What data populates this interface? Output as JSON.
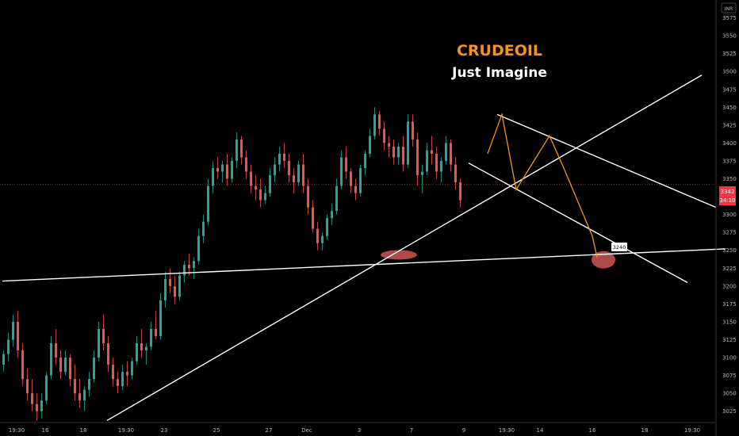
{
  "chart_data": {
    "type": "candlestick",
    "title": "CRUDEOIL",
    "subtitle": "Just Imagine",
    "currency": "INR",
    "ylim": [
      3012.5,
      3600
    ],
    "y_ticks": [
      3575,
      3550,
      3525,
      3500,
      3475,
      3450,
      3425,
      3400,
      3375,
      3350,
      3325,
      3300,
      3275,
      3250,
      3225,
      3200,
      3175,
      3150,
      3125,
      3100,
      3075,
      3050,
      3025
    ],
    "x_ticks": [
      {
        "label": "19:30",
        "slot": 3
      },
      {
        "label": "16",
        "slot": 9
      },
      {
        "label": "18",
        "slot": 17
      },
      {
        "label": "19:30",
        "slot": 26
      },
      {
        "label": "23",
        "slot": 34
      },
      {
        "label": "25",
        "slot": 45
      },
      {
        "label": "27",
        "slot": 56
      },
      {
        "label": "Dec",
        "slot": 64
      },
      {
        "label": "3",
        "slot": 75
      },
      {
        "label": "7",
        "slot": 86
      },
      {
        "label": "9",
        "slot": 97
      },
      {
        "label": "19:30",
        "slot": 106
      },
      {
        "label": "14",
        "slot": 113
      },
      {
        "label": "16",
        "slot": 124
      },
      {
        "label": "18",
        "slot": 135
      },
      {
        "label": "19:30",
        "slot": 145
      }
    ],
    "last_price": {
      "value": 3342,
      "countdown": "34:10",
      "color": "#f23645"
    },
    "annotation": {
      "label": "3240",
      "value": 3240
    },
    "colors": {
      "up": "#26a69a",
      "down": "#ef5350",
      "trendline": "#ffffff",
      "pattern": "#f7931a",
      "title": "#f7931a",
      "subtitle": "#ffffff",
      "highlight": "#e05c5c"
    },
    "candles": [
      [
        3090,
        3110,
        3080,
        3105
      ],
      [
        3105,
        3135,
        3095,
        3125
      ],
      [
        3125,
        3160,
        3115,
        3150
      ],
      [
        3150,
        3165,
        3100,
        3110
      ],
      [
        3110,
        3120,
        3060,
        3070
      ],
      [
        3070,
        3085,
        3040,
        3050
      ],
      [
        3050,
        3070,
        3025,
        3035
      ],
      [
        3035,
        3050,
        3012,
        3025
      ],
      [
        3025,
        3050,
        3015,
        3040
      ],
      [
        3040,
        3080,
        3035,
        3075
      ],
      [
        3075,
        3130,
        3070,
        3120
      ],
      [
        3120,
        3140,
        3090,
        3100
      ],
      [
        3100,
        3110,
        3070,
        3080
      ],
      [
        3080,
        3110,
        3075,
        3100
      ],
      [
        3100,
        3105,
        3060,
        3070
      ],
      [
        3070,
        3090,
        3040,
        3050
      ],
      [
        3050,
        3070,
        3030,
        3040
      ],
      [
        3040,
        3060,
        3025,
        3055
      ],
      [
        3055,
        3080,
        3045,
        3070
      ],
      [
        3070,
        3110,
        3065,
        3100
      ],
      [
        3100,
        3150,
        3095,
        3140
      ],
      [
        3140,
        3160,
        3110,
        3120
      ],
      [
        3120,
        3130,
        3080,
        3090
      ],
      [
        3090,
        3100,
        3060,
        3070
      ],
      [
        3070,
        3080,
        3050,
        3060
      ],
      [
        3060,
        3090,
        3055,
        3080
      ],
      [
        3080,
        3095,
        3060,
        3075
      ],
      [
        3075,
        3100,
        3070,
        3095
      ],
      [
        3095,
        3130,
        3090,
        3120
      ],
      [
        3120,
        3140,
        3100,
        3110
      ],
      [
        3110,
        3120,
        3090,
        3115
      ],
      [
        3115,
        3150,
        3110,
        3140
      ],
      [
        3140,
        3165,
        3125,
        3130
      ],
      [
        3130,
        3190,
        3125,
        3180
      ],
      [
        3180,
        3220,
        3170,
        3210
      ],
      [
        3210,
        3225,
        3190,
        3200
      ],
      [
        3200,
        3215,
        3175,
        3185
      ],
      [
        3185,
        3220,
        3180,
        3215
      ],
      [
        3215,
        3235,
        3205,
        3230
      ],
      [
        3230,
        3245,
        3215,
        3225
      ],
      [
        3225,
        3240,
        3210,
        3235
      ],
      [
        3235,
        3280,
        3230,
        3270
      ],
      [
        3270,
        3300,
        3260,
        3290
      ],
      [
        3290,
        3350,
        3285,
        3340
      ],
      [
        3340,
        3375,
        3330,
        3365
      ],
      [
        3365,
        3380,
        3350,
        3360
      ],
      [
        3360,
        3375,
        3345,
        3370
      ],
      [
        3370,
        3385,
        3340,
        3350
      ],
      [
        3350,
        3380,
        3345,
        3375
      ],
      [
        3375,
        3415,
        3365,
        3405
      ],
      [
        3405,
        3410,
        3370,
        3380
      ],
      [
        3380,
        3390,
        3350,
        3360
      ],
      [
        3360,
        3370,
        3330,
        3340
      ],
      [
        3340,
        3355,
        3320,
        3335
      ],
      [
        3335,
        3350,
        3310,
        3320
      ],
      [
        3320,
        3340,
        3315,
        3330
      ],
      [
        3330,
        3365,
        3325,
        3355
      ],
      [
        3355,
        3380,
        3345,
        3370
      ],
      [
        3370,
        3395,
        3360,
        3385
      ],
      [
        3385,
        3400,
        3365,
        3375
      ],
      [
        3375,
        3385,
        3345,
        3355
      ],
      [
        3355,
        3365,
        3330,
        3345
      ],
      [
        3345,
        3375,
        3340,
        3370
      ],
      [
        3370,
        3385,
        3330,
        3340
      ],
      [
        3340,
        3350,
        3300,
        3310
      ],
      [
        3310,
        3320,
        3275,
        3280
      ],
      [
        3280,
        3290,
        3250,
        3260
      ],
      [
        3260,
        3275,
        3250,
        3270
      ],
      [
        3270,
        3300,
        3265,
        3295
      ],
      [
        3295,
        3315,
        3285,
        3305
      ],
      [
        3305,
        3350,
        3300,
        3340
      ],
      [
        3340,
        3390,
        3335,
        3380
      ],
      [
        3380,
        3395,
        3350,
        3360
      ],
      [
        3360,
        3365,
        3330,
        3340
      ],
      [
        3340,
        3350,
        3320,
        3330
      ],
      [
        3330,
        3370,
        3325,
        3365
      ],
      [
        3365,
        3390,
        3355,
        3385
      ],
      [
        3385,
        3420,
        3380,
        3410
      ],
      [
        3410,
        3450,
        3405,
        3440
      ],
      [
        3440,
        3445,
        3410,
        3420
      ],
      [
        3420,
        3430,
        3390,
        3400
      ],
      [
        3400,
        3410,
        3380,
        3395
      ],
      [
        3395,
        3405,
        3370,
        3380
      ],
      [
        3380,
        3400,
        3370,
        3395
      ],
      [
        3395,
        3410,
        3360,
        3370
      ],
      [
        3370,
        3440,
        3365,
        3430
      ],
      [
        3430,
        3440,
        3395,
        3405
      ],
      [
        3405,
        3415,
        3340,
        3355
      ],
      [
        3355,
        3370,
        3330,
        3360
      ],
      [
        3360,
        3400,
        3355,
        3390
      ],
      [
        3390,
        3410,
        3370,
        3385
      ],
      [
        3385,
        3395,
        3350,
        3360
      ],
      [
        3360,
        3380,
        3345,
        3375
      ],
      [
        3375,
        3410,
        3370,
        3400
      ],
      [
        3400,
        3405,
        3360,
        3370
      ],
      [
        3370,
        3380,
        3335,
        3345
      ],
      [
        3345,
        3350,
        3310,
        3320
      ]
    ],
    "trendlines": [
      {
        "name": "horizontal-support",
        "points": [
          {
            "slot": 0,
            "value": 3207
          },
          {
            "slot": 152,
            "value": 3252
          }
        ]
      },
      {
        "name": "rising-trendline",
        "points": [
          {
            "slot": 22,
            "value": 3012
          },
          {
            "slot": 147,
            "value": 3495
          }
        ]
      },
      {
        "name": "channel-upper",
        "points": [
          {
            "slot": 104,
            "value": 3440
          },
          {
            "slot": 150,
            "value": 3310
          }
        ]
      },
      {
        "name": "channel-lower",
        "points": [
          {
            "slot": 98,
            "value": 3372
          },
          {
            "slot": 144,
            "value": 3205
          }
        ]
      }
    ],
    "pattern": [
      {
        "slot": 102,
        "value": 3385
      },
      {
        "slot": 105,
        "value": 3440
      },
      {
        "slot": 108,
        "value": 3335
      },
      {
        "slot": 115,
        "value": 3410
      },
      {
        "slot": 118,
        "value": 3365
      },
      {
        "slot": 124,
        "value": 3270
      },
      {
        "slot": 125,
        "value": 3240
      }
    ],
    "highlights": [
      {
        "name": "support-zone-ellipse",
        "slot": 83,
        "value": 3247
      },
      {
        "name": "target-zone-ellipse",
        "slot": 126,
        "value": 3240
      }
    ]
  }
}
